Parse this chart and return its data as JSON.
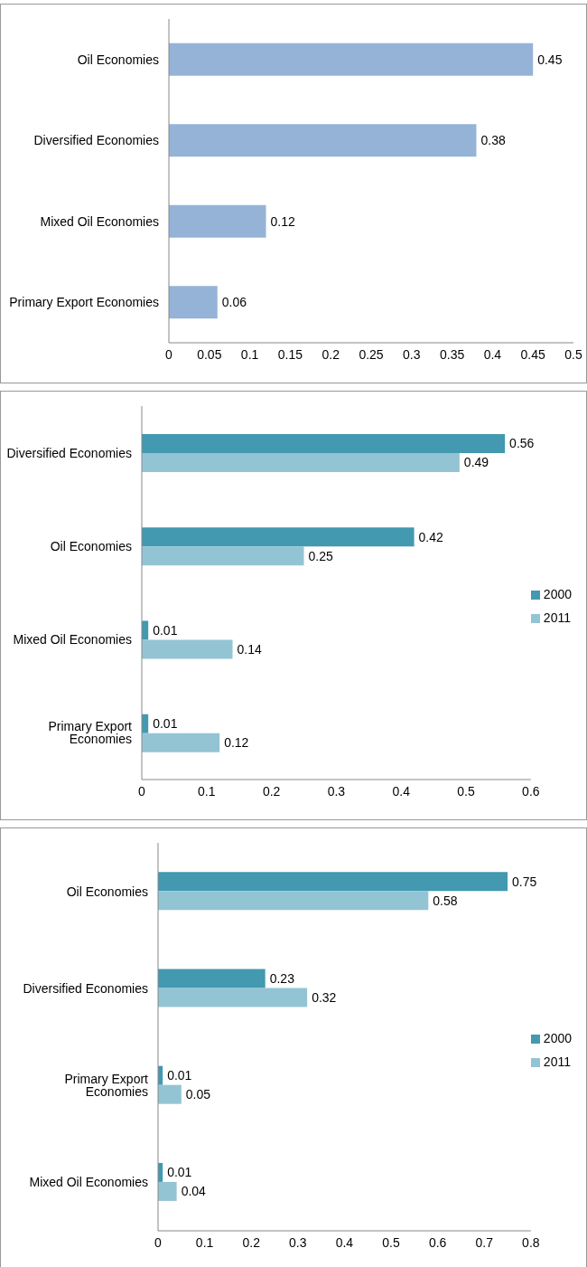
{
  "chart_data": [
    {
      "type": "bar",
      "orientation": "horizontal",
      "categories": [
        "Oil Economies",
        "Diversified Economies",
        "Mixed Oil Economies",
        "Primary Export Economies"
      ],
      "values": [
        0.45,
        0.38,
        0.12,
        0.06
      ],
      "color": "#95b3d7",
      "xlim": [
        0,
        0.5
      ],
      "xticks": [
        0,
        0.05,
        0.1,
        0.15,
        0.2,
        0.25,
        0.3,
        0.35,
        0.4,
        0.45,
        0.5
      ],
      "grid": false,
      "legend": false,
      "data_labels": true
    },
    {
      "type": "bar",
      "orientation": "horizontal",
      "categories": [
        "Diversified Economies",
        "Oil Economies",
        "Mixed Oil Economies",
        "Primary Export Economies"
      ],
      "series": [
        {
          "name": "2000",
          "color": "#4299b0",
          "values": [
            0.56,
            0.42,
            0.01,
            0.01
          ]
        },
        {
          "name": "2011",
          "color": "#93c4d4",
          "values": [
            0.49,
            0.25,
            0.14,
            0.12
          ]
        }
      ],
      "xlim": [
        0,
        0.6
      ],
      "xticks": [
        0,
        0.1,
        0.2,
        0.3,
        0.4,
        0.5,
        0.6
      ],
      "grid": false,
      "legend": "right",
      "data_labels": true
    },
    {
      "type": "bar",
      "orientation": "horizontal",
      "categories": [
        "Oil Economies",
        "Diversified Economies",
        "Primary Export Economies",
        "Mixed Oil Economies"
      ],
      "series": [
        {
          "name": "2000",
          "color": "#4299b0",
          "values": [
            0.75,
            0.23,
            0.01,
            0.01
          ]
        },
        {
          "name": "2011",
          "color": "#93c4d4",
          "values": [
            0.58,
            0.32,
            0.05,
            0.04
          ]
        }
      ],
      "xlim": [
        0,
        0.8
      ],
      "xticks": [
        0,
        0.1,
        0.2,
        0.3,
        0.4,
        0.5,
        0.6,
        0.7,
        0.8
      ],
      "grid": false,
      "legend": "right",
      "data_labels": true
    }
  ]
}
